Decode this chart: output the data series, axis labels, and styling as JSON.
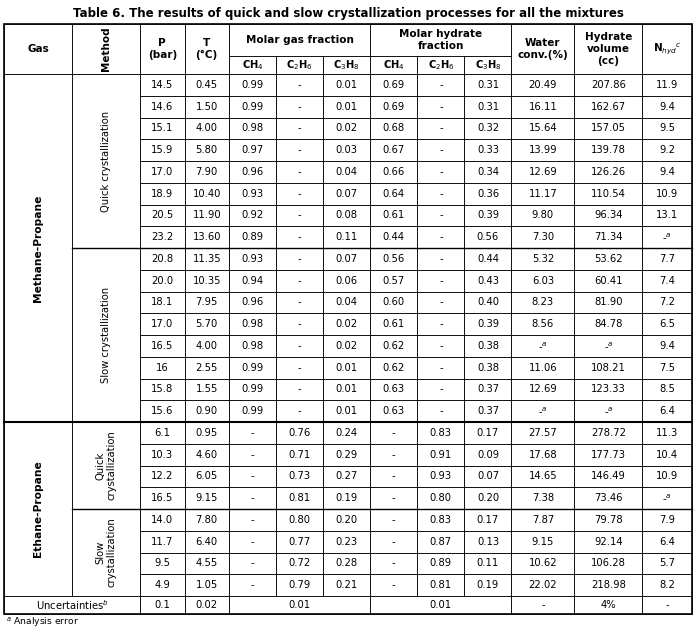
{
  "title": "Table 6. The results of quick and slow crystallization processes for all the mixtures",
  "rows": [
    [
      "14.5",
      "0.45",
      "0.99",
      "-",
      "0.01",
      "0.69",
      "-",
      "0.31",
      "20.49",
      "207.86",
      "11.9"
    ],
    [
      "14.6",
      "1.50",
      "0.99",
      "-",
      "0.01",
      "0.69",
      "-",
      "0.31",
      "16.11",
      "162.67",
      "9.4"
    ],
    [
      "15.1",
      "4.00",
      "0.98",
      "-",
      "0.02",
      "0.68",
      "-",
      "0.32",
      "15.64",
      "157.05",
      "9.5"
    ],
    [
      "15.9",
      "5.80",
      "0.97",
      "-",
      "0.03",
      "0.67",
      "-",
      "0.33",
      "13.99",
      "139.78",
      "9.2"
    ],
    [
      "17.0",
      "7.90",
      "0.96",
      "-",
      "0.04",
      "0.66",
      "-",
      "0.34",
      "12.69",
      "126.26",
      "9.4"
    ],
    [
      "18.9",
      "10.40",
      "0.93",
      "-",
      "0.07",
      "0.64",
      "-",
      "0.36",
      "11.17",
      "110.54",
      "10.9"
    ],
    [
      "20.5",
      "11.90",
      "0.92",
      "-",
      "0.08",
      "0.61",
      "-",
      "0.39",
      "9.80",
      "96.34",
      "13.1"
    ],
    [
      "23.2",
      "13.60",
      "0.89",
      "-",
      "0.11",
      "0.44",
      "-",
      "0.56",
      "7.30",
      "71.34",
      "-a"
    ],
    [
      "20.8",
      "11.35",
      "0.93",
      "-",
      "0.07",
      "0.56",
      "-",
      "0.44",
      "5.32",
      "53.62",
      "7.7"
    ],
    [
      "20.0",
      "10.35",
      "0.94",
      "-",
      "0.06",
      "0.57",
      "-",
      "0.43",
      "6.03",
      "60.41",
      "7.4"
    ],
    [
      "18.1",
      "7.95",
      "0.96",
      "-",
      "0.04",
      "0.60",
      "-",
      "0.40",
      "8.23",
      "81.90",
      "7.2"
    ],
    [
      "17.0",
      "5.70",
      "0.98",
      "-",
      "0.02",
      "0.61",
      "-",
      "0.39",
      "8.56",
      "84.78",
      "6.5"
    ],
    [
      "16.5",
      "4.00",
      "0.98",
      "-",
      "0.02",
      "0.62",
      "-",
      "0.38",
      "-a",
      "-a",
      "9.4"
    ],
    [
      "16",
      "2.55",
      "0.99",
      "-",
      "0.01",
      "0.62",
      "-",
      "0.38",
      "11.06",
      "108.21",
      "7.5"
    ],
    [
      "15.8",
      "1.55",
      "0.99",
      "-",
      "0.01",
      "0.63",
      "-",
      "0.37",
      "12.69",
      "123.33",
      "8.5"
    ],
    [
      "15.6",
      "0.90",
      "0.99",
      "-",
      "0.01",
      "0.63",
      "-",
      "0.37",
      "-a",
      "-a",
      "6.4"
    ],
    [
      "6.1",
      "0.95",
      "-",
      "0.76",
      "0.24",
      "-",
      "0.83",
      "0.17",
      "27.57",
      "278.72",
      "11.3"
    ],
    [
      "10.3",
      "4.60",
      "-",
      "0.71",
      "0.29",
      "-",
      "0.91",
      "0.09",
      "17.68",
      "177.73",
      "10.4"
    ],
    [
      "12.2",
      "6.05",
      "-",
      "0.73",
      "0.27",
      "-",
      "0.93",
      "0.07",
      "14.65",
      "146.49",
      "10.9"
    ],
    [
      "16.5",
      "9.15",
      "-",
      "0.81",
      "0.19",
      "-",
      "0.80",
      "0.20",
      "7.38",
      "73.46",
      "-a"
    ],
    [
      "14.0",
      "7.80",
      "-",
      "0.80",
      "0.20",
      "-",
      "0.83",
      "0.17",
      "7.87",
      "79.78",
      "7.9"
    ],
    [
      "11.7",
      "6.40",
      "-",
      "0.77",
      "0.23",
      "-",
      "0.87",
      "0.13",
      "9.15",
      "92.14",
      "6.4"
    ],
    [
      "9.5",
      "4.55",
      "-",
      "0.72",
      "0.28",
      "-",
      "0.89",
      "0.11",
      "10.62",
      "106.28",
      "5.7"
    ],
    [
      "4.9",
      "1.05",
      "-",
      "0.79",
      "0.21",
      "-",
      "0.81",
      "0.19",
      "22.02",
      "218.98",
      "8.2"
    ]
  ],
  "bg_color": "#ffffff",
  "line_color": "#000000",
  "text_color": "#000000",
  "font_size": 7.2,
  "header_font_size": 7.5
}
